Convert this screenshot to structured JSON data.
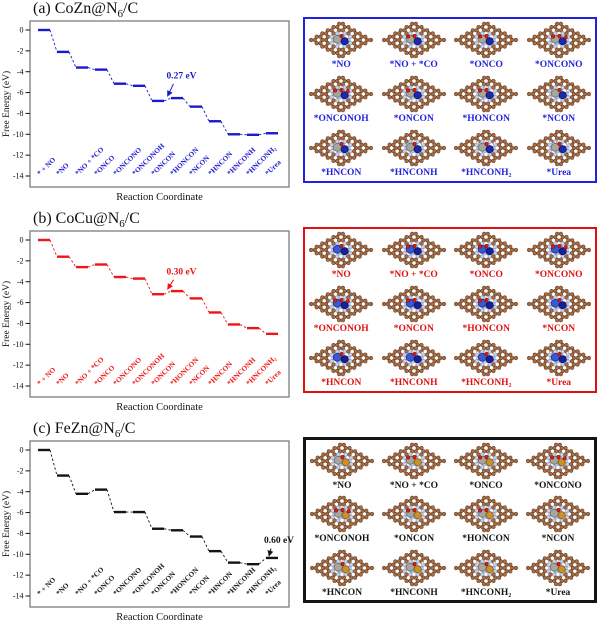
{
  "figure_caption": "",
  "species_labels": [
    "*NO",
    "*NO + *CO",
    "*ONCO",
    "*ONCONO",
    "*ONCONOH",
    "*ONCON",
    "*HONCON",
    "*NCON",
    "*HNCON",
    "*HNCONH",
    "*HNCONH₂",
    "*Urea"
  ],
  "atom_colors": {
    "carbon": "#a46e48",
    "carbon_edge": "#6b3f22",
    "nitrogen": "#c6d1ea",
    "nitrogen_edge": "#8892b4",
    "oxygen": "#dd1c0c",
    "oxygen_edge": "#7e0f06",
    "hydrogen": "#f5f5f5",
    "hydrogen_edge": "#9a9a9a"
  },
  "chart_data": [
    {
      "type": "step",
      "title": "(a) CoZn@N6/C",
      "color": "#1a1ace",
      "xlabel": "Reaction Coordinate",
      "ylabel": "Free Energy (eV)",
      "ylim": [
        -15,
        0.8
      ],
      "yticks": [
        0,
        -2,
        -4,
        -6,
        -8,
        -10,
        -12,
        -14
      ],
      "grid": false,
      "categories": [
        "* + NO",
        "*NO",
        "*NO + *CO",
        "*ONCO",
        "*ONCONO",
        "*ONCONOH",
        "*ONCON",
        "*HONCON",
        "*NCON",
        "*HNCON",
        "*HNCONH",
        "*HNCONH₂",
        "*Urea"
      ],
      "values": [
        0,
        -2.1,
        -3.6,
        -3.8,
        -5.15,
        -5.35,
        -6.8,
        -6.53,
        -7.35,
        -8.75,
        -10.0,
        -10.05,
        -9.9
      ],
      "annotation": {
        "text": "0.27 eV",
        "to_step": 7,
        "tip_dx": -3.5,
        "label_offset": [
          14,
          -18
        ]
      }
    },
    {
      "type": "step",
      "title": "(b) CoCu@N6/C",
      "color": "#ee1515",
      "xlabel": "Reaction Coordinate",
      "ylabel": "Free Energy (eV)",
      "ylim": [
        -15,
        0.8
      ],
      "yticks": [
        0,
        -2,
        -4,
        -6,
        -8,
        -10,
        -12,
        -14
      ],
      "grid": false,
      "categories": [
        "* + NO",
        "*NO",
        "*NO + *CO",
        "*ONCO",
        "*ONCONO",
        "*ONCONOH",
        "*ONCON",
        "*HONCON",
        "*NCON",
        "*HNCON",
        "*HNCONH",
        "*HNCONH₂",
        "*Urea"
      ],
      "values": [
        0,
        -1.6,
        -2.6,
        -2.35,
        -3.55,
        -3.7,
        -5.2,
        -4.9,
        -5.6,
        -6.95,
        -8.1,
        -8.45,
        -9.0
      ],
      "annotation": {
        "text": "0.30 eV",
        "to_step": 7,
        "tip_dx": -3.5,
        "label_offset": [
          14,
          -15
        ]
      }
    },
    {
      "type": "step",
      "title": "(c) FeZn@N6/C",
      "color": "#141414",
      "xlabel": "Reaction Coordinate",
      "ylabel": "Free Energy (eV)",
      "ylim": [
        -15,
        0.8
      ],
      "yticks": [
        0,
        -2,
        -4,
        -6,
        -8,
        -10,
        -12,
        -14
      ],
      "grid": false,
      "categories": [
        "* + NO",
        "*NO",
        "*NO + *CO",
        "*ONCO",
        "*ONCONO",
        "*ONCONOH",
        "*ONCON",
        "*HONCON",
        "*NCON",
        "*HNCON",
        "*HNCONH",
        "*HNCONH₂",
        "*Urea"
      ],
      "values": [
        0,
        -2.45,
        -4.2,
        -3.8,
        -5.95,
        -5.95,
        -7.55,
        -7.7,
        -8.3,
        -9.7,
        -10.8,
        -10.95,
        -10.35
      ],
      "annotation": {
        "text": "0.60 eV",
        "to_step": 12,
        "tip_dx": 3,
        "label_offset": [
          10,
          -13
        ]
      }
    }
  ],
  "panels": [
    {
      "id": "a",
      "title": {
        "prefix": "(a) ",
        "main": "CoZn@N",
        "sub": "6",
        "suffix": "/C"
      },
      "gallery": {
        "frame_color": "#2222dd",
        "frame_width": 2,
        "label_color": "#2222dd",
        "metal1": "#a6a69e",
        "metal1_edge": "#6e6e66",
        "metal2": "#1e2aae",
        "metal2_edge": "#0c1260"
      }
    },
    {
      "id": "b",
      "title": {
        "prefix": "(b) ",
        "main": "CoCu@N",
        "sub": "6",
        "suffix": "/C"
      },
      "gallery": {
        "frame_color": "#e01010",
        "frame_width": 2,
        "label_color": "#e01010",
        "metal1": "#3a58d4",
        "metal1_edge": "#1c2f90",
        "metal2": "#182098",
        "metal2_edge": "#0c1260"
      }
    },
    {
      "id": "c",
      "title": {
        "prefix": "(c) ",
        "main": "FeZn@N",
        "sub": "6",
        "suffix": "/C"
      },
      "gallery": {
        "frame_color": "#141414",
        "frame_width": 3,
        "label_color": "#141414",
        "metal1": "#a6a69e",
        "metal1_edge": "#6e6e66",
        "metal2": "#c9912e",
        "metal2_edge": "#8a5c10"
      }
    }
  ]
}
